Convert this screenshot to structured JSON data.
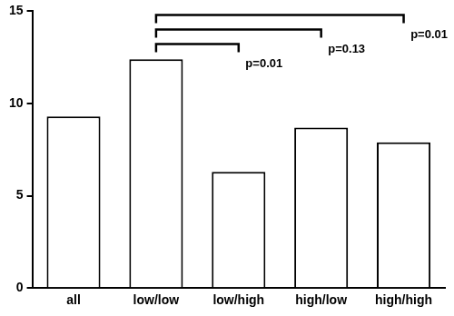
{
  "chart_data": {
    "type": "bar",
    "categories": [
      "all",
      "low/low",
      "low/high",
      "high/low",
      "high/high"
    ],
    "values": [
      9.3,
      12.4,
      6.3,
      8.7,
      7.9
    ],
    "color": "#ffffff",
    "ylim": [
      0,
      15
    ],
    "yticks": [
      0,
      5,
      10,
      15
    ],
    "grid": false,
    "annotations": [
      {
        "from": "low/low",
        "to": "low/high",
        "text": "p=0.01"
      },
      {
        "from": "low/low",
        "to": "high/low",
        "text": "p=0.13"
      },
      {
        "from": "low/low",
        "to": "high/high",
        "text": "p=0.01"
      }
    ]
  }
}
